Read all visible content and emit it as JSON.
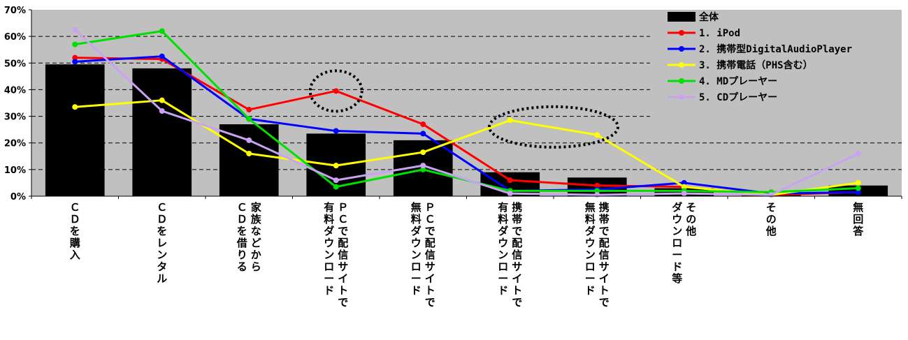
{
  "chart_data": {
    "type": "bar",
    "categories": [
      [
        "ＣＤを購入"
      ],
      [
        "ＣＤをレンタル"
      ],
      [
        "家族などから",
        "ＣＤを借りる"
      ],
      [
        "ＰＣで配信サイトで",
        "有料ダウンロード"
      ],
      [
        "ＰＣで配信サイトで",
        "無料ダウンロード"
      ],
      [
        "携帯で配信サイトで",
        "有料ダウンロード"
      ],
      [
        "携帯で配信サイトで",
        "無料ダウンロード"
      ],
      [
        "その他",
        "ダウンロード等"
      ],
      [
        "その他"
      ],
      [
        "無回答"
      ]
    ],
    "y_ticks": [
      "0%",
      "10%",
      "20%",
      "30%",
      "40%",
      "50%",
      "60%",
      "70%"
    ],
    "ylim": [
      0,
      70
    ],
    "grid": true,
    "legend_position": "top-right",
    "series": [
      {
        "name": "全体",
        "kind": "bar",
        "color": "#000000",
        "values": [
          49.5,
          48,
          27,
          23.5,
          21,
          9,
          7,
          3,
          0.5,
          4
        ]
      },
      {
        "name": "1. iPod",
        "kind": "line",
        "color": "#ff0000",
        "values": [
          52,
          51.5,
          32.5,
          39.5,
          27,
          6,
          4,
          3.5,
          0.5,
          1.5
        ]
      },
      {
        "name": "2. 携帯型DigitalAudioPlayer",
        "kind": "line",
        "color": "#0000ff",
        "values": [
          50.5,
          52.5,
          29,
          24.5,
          23.5,
          2,
          2.5,
          5,
          1,
          1.5
        ]
      },
      {
        "name": "3. 携帯電話（PHS含む）",
        "kind": "line",
        "color": "#ffff00",
        "values": [
          33.5,
          36,
          16,
          11.5,
          16.5,
          28.5,
          23,
          3.5,
          0.5,
          5
        ]
      },
      {
        "name": "4. MDプレーヤー",
        "kind": "line",
        "color": "#00e000",
        "values": [
          57,
          62,
          29,
          3.5,
          10,
          2,
          2,
          2,
          1.5,
          3
        ]
      },
      {
        "name": "5. CDプレーヤー",
        "kind": "line",
        "color": "#c9a3f2",
        "values": [
          62.5,
          32,
          21,
          6,
          11.5,
          1,
          0.5,
          1,
          0.5,
          16
        ]
      }
    ],
    "annotations": [
      {
        "shape": "dotted-ellipse",
        "target_category_index": 3,
        "value": 39.5
      },
      {
        "shape": "dotted-ellipse",
        "target_category_indices": [
          5,
          6
        ],
        "value": 26
      }
    ]
  }
}
